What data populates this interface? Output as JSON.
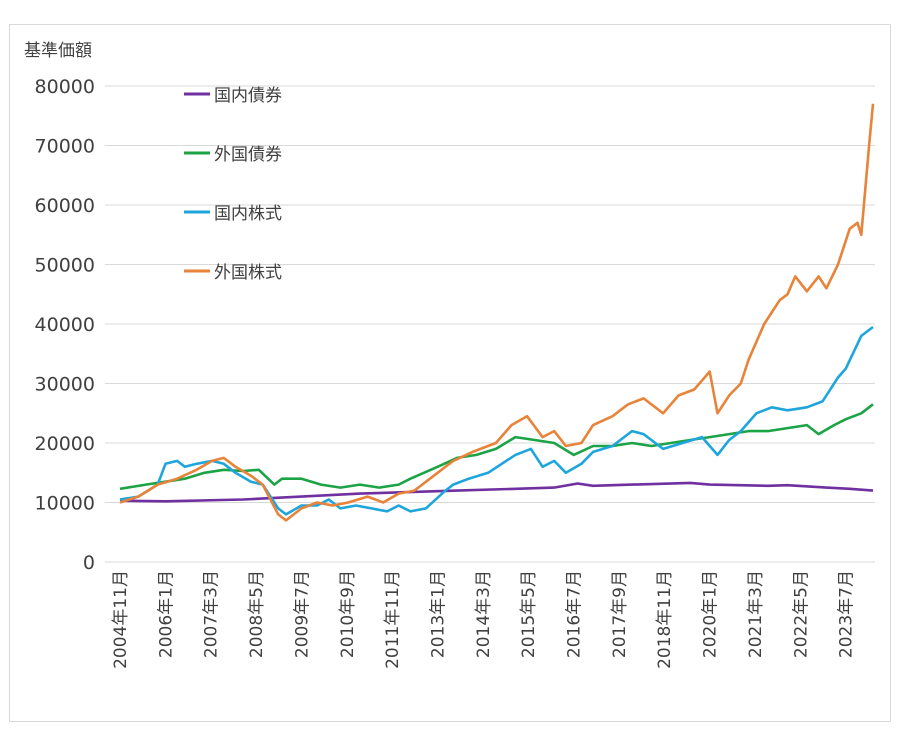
{
  "chart_data": {
    "type": "line",
    "title": "",
    "ylabel": "基準価額",
    "xlabel": "",
    "ylim": [
      0,
      80000
    ],
    "yticks": [
      "0",
      "10000",
      "20000",
      "30000",
      "40000",
      "50000",
      "60000",
      "70000",
      "80000"
    ],
    "xlim": [
      2004.83,
      2024.2
    ],
    "xtick_labels": [
      "2004年11月",
      "2006年1月",
      "2007年3月",
      "2008年5月",
      "2009年7月",
      "2010年9月",
      "2011年11月",
      "2013年1月",
      "2014年3月",
      "2015年5月",
      "2016年7月",
      "2017年9月",
      "2018年11月",
      "2020年1月",
      "2021年3月",
      "2022年5月",
      "2023年7月"
    ],
    "grid": true,
    "legend_position": "top-left",
    "series": [
      {
        "name": "国内債券",
        "color": "#7030a0",
        "points": [
          [
            2004.83,
            10300
          ],
          [
            2006,
            10200
          ],
          [
            2008,
            10500
          ],
          [
            2009.5,
            11000
          ],
          [
            2011,
            11500
          ],
          [
            2013.5,
            12000
          ],
          [
            2016,
            12500
          ],
          [
            2016.6,
            13200
          ],
          [
            2017,
            12800
          ],
          [
            2018,
            13000
          ],
          [
            2019.5,
            13300
          ],
          [
            2020,
            13000
          ],
          [
            2021.5,
            12800
          ],
          [
            2022,
            12900
          ],
          [
            2023,
            12500
          ],
          [
            2023.6,
            12300
          ],
          [
            2024.2,
            12000
          ]
        ]
      },
      {
        "name": "外国債券",
        "color": "#1ca346",
        "points": [
          [
            2004.83,
            12300
          ],
          [
            2005.5,
            13000
          ],
          [
            2006,
            13500
          ],
          [
            2006.5,
            14000
          ],
          [
            2007,
            15000
          ],
          [
            2007.5,
            15500
          ],
          [
            2008,
            15300
          ],
          [
            2008.4,
            15500
          ],
          [
            2008.8,
            13000
          ],
          [
            2009,
            14000
          ],
          [
            2009.5,
            14000
          ],
          [
            2010,
            13000
          ],
          [
            2010.5,
            12500
          ],
          [
            2011,
            13000
          ],
          [
            2011.5,
            12500
          ],
          [
            2012,
            13000
          ],
          [
            2012.3,
            14000
          ],
          [
            2013,
            16000
          ],
          [
            2013.5,
            17500
          ],
          [
            2014,
            18000
          ],
          [
            2014.5,
            19000
          ],
          [
            2015,
            21000
          ],
          [
            2015.5,
            20500
          ],
          [
            2016,
            20000
          ],
          [
            2016.5,
            18000
          ],
          [
            2017,
            19500
          ],
          [
            2017.5,
            19500
          ],
          [
            2018,
            20000
          ],
          [
            2018.5,
            19500
          ],
          [
            2019,
            20000
          ],
          [
            2019.5,
            20500
          ],
          [
            2020,
            21000
          ],
          [
            2020.5,
            21500
          ],
          [
            2021,
            22000
          ],
          [
            2021.5,
            22000
          ],
          [
            2022,
            22500
          ],
          [
            2022.5,
            23000
          ],
          [
            2022.8,
            21500
          ],
          [
            2023.2,
            23000
          ],
          [
            2023.5,
            24000
          ],
          [
            2023.9,
            25000
          ],
          [
            2024.2,
            26500
          ]
        ]
      },
      {
        "name": "国内株式",
        "color": "#1ea6dc",
        "points": [
          [
            2004.83,
            10500
          ],
          [
            2005.3,
            11000
          ],
          [
            2005.8,
            13000
          ],
          [
            2006.0,
            16500
          ],
          [
            2006.3,
            17000
          ],
          [
            2006.5,
            16000
          ],
          [
            2006.8,
            16500
          ],
          [
            2007.2,
            17000
          ],
          [
            2007.5,
            16500
          ],
          [
            2007.8,
            15000
          ],
          [
            2008.2,
            13500
          ],
          [
            2008.5,
            13000
          ],
          [
            2008.9,
            9000
          ],
          [
            2009.1,
            8000
          ],
          [
            2009.5,
            9500
          ],
          [
            2009.9,
            9500
          ],
          [
            2010.2,
            10500
          ],
          [
            2010.5,
            9000
          ],
          [
            2010.9,
            9500
          ],
          [
            2011.3,
            9000
          ],
          [
            2011.7,
            8500
          ],
          [
            2012,
            9500
          ],
          [
            2012.3,
            8500
          ],
          [
            2012.7,
            9000
          ],
          [
            2013.2,
            12000
          ],
          [
            2013.4,
            13000
          ],
          [
            2013.8,
            14000
          ],
          [
            2014.3,
            15000
          ],
          [
            2015.0,
            18000
          ],
          [
            2015.4,
            19000
          ],
          [
            2015.7,
            16000
          ],
          [
            2016.0,
            17000
          ],
          [
            2016.3,
            15000
          ],
          [
            2016.7,
            16500
          ],
          [
            2017.0,
            18500
          ],
          [
            2017.5,
            19500
          ],
          [
            2018.0,
            22000
          ],
          [
            2018.3,
            21500
          ],
          [
            2018.8,
            19000
          ],
          [
            2019.3,
            20000
          ],
          [
            2019.8,
            21000
          ],
          [
            2020.2,
            18000
          ],
          [
            2020.5,
            20500
          ],
          [
            2020.8,
            22000
          ],
          [
            2021.2,
            25000
          ],
          [
            2021.6,
            26000
          ],
          [
            2022.0,
            25500
          ],
          [
            2022.5,
            26000
          ],
          [
            2022.9,
            27000
          ],
          [
            2023.3,
            31000
          ],
          [
            2023.5,
            32500
          ],
          [
            2023.9,
            38000
          ],
          [
            2024.2,
            39500
          ]
        ]
      },
      {
        "name": "外国株式",
        "color": "#e8833a",
        "points": [
          [
            2004.83,
            10000
          ],
          [
            2005.3,
            11000
          ],
          [
            2005.8,
            13000
          ],
          [
            2006.3,
            14000
          ],
          [
            2006.8,
            15500
          ],
          [
            2007.2,
            17000
          ],
          [
            2007.5,
            17500
          ],
          [
            2007.8,
            16000
          ],
          [
            2008.2,
            14500
          ],
          [
            2008.5,
            13000
          ],
          [
            2008.9,
            8000
          ],
          [
            2009.1,
            7000
          ],
          [
            2009.5,
            9000
          ],
          [
            2009.9,
            10000
          ],
          [
            2010.3,
            9500
          ],
          [
            2010.7,
            10000
          ],
          [
            2011.2,
            11000
          ],
          [
            2011.6,
            10000
          ],
          [
            2012.0,
            11500
          ],
          [
            2012.4,
            12000
          ],
          [
            2013.0,
            15000
          ],
          [
            2013.4,
            17000
          ],
          [
            2013.9,
            18500
          ],
          [
            2014.5,
            20000
          ],
          [
            2014.9,
            23000
          ],
          [
            2015.3,
            24500
          ],
          [
            2015.7,
            21000
          ],
          [
            2016.0,
            22000
          ],
          [
            2016.3,
            19500
          ],
          [
            2016.7,
            20000
          ],
          [
            2017.0,
            23000
          ],
          [
            2017.5,
            24500
          ],
          [
            2017.9,
            26500
          ],
          [
            2018.3,
            27500
          ],
          [
            2018.8,
            25000
          ],
          [
            2019.2,
            28000
          ],
          [
            2019.6,
            29000
          ],
          [
            2020.0,
            32000
          ],
          [
            2020.2,
            25000
          ],
          [
            2020.5,
            28000
          ],
          [
            2020.8,
            30000
          ],
          [
            2021.0,
            34000
          ],
          [
            2021.4,
            40000
          ],
          [
            2021.8,
            44000
          ],
          [
            2022.0,
            45000
          ],
          [
            2022.2,
            48000
          ],
          [
            2022.5,
            45500
          ],
          [
            2022.8,
            48000
          ],
          [
            2023.0,
            46000
          ],
          [
            2023.3,
            50000
          ],
          [
            2023.6,
            56000
          ],
          [
            2023.8,
            57000
          ],
          [
            2023.9,
            55000
          ],
          [
            2024.1,
            70000
          ],
          [
            2024.2,
            77000
          ]
        ]
      }
    ]
  }
}
